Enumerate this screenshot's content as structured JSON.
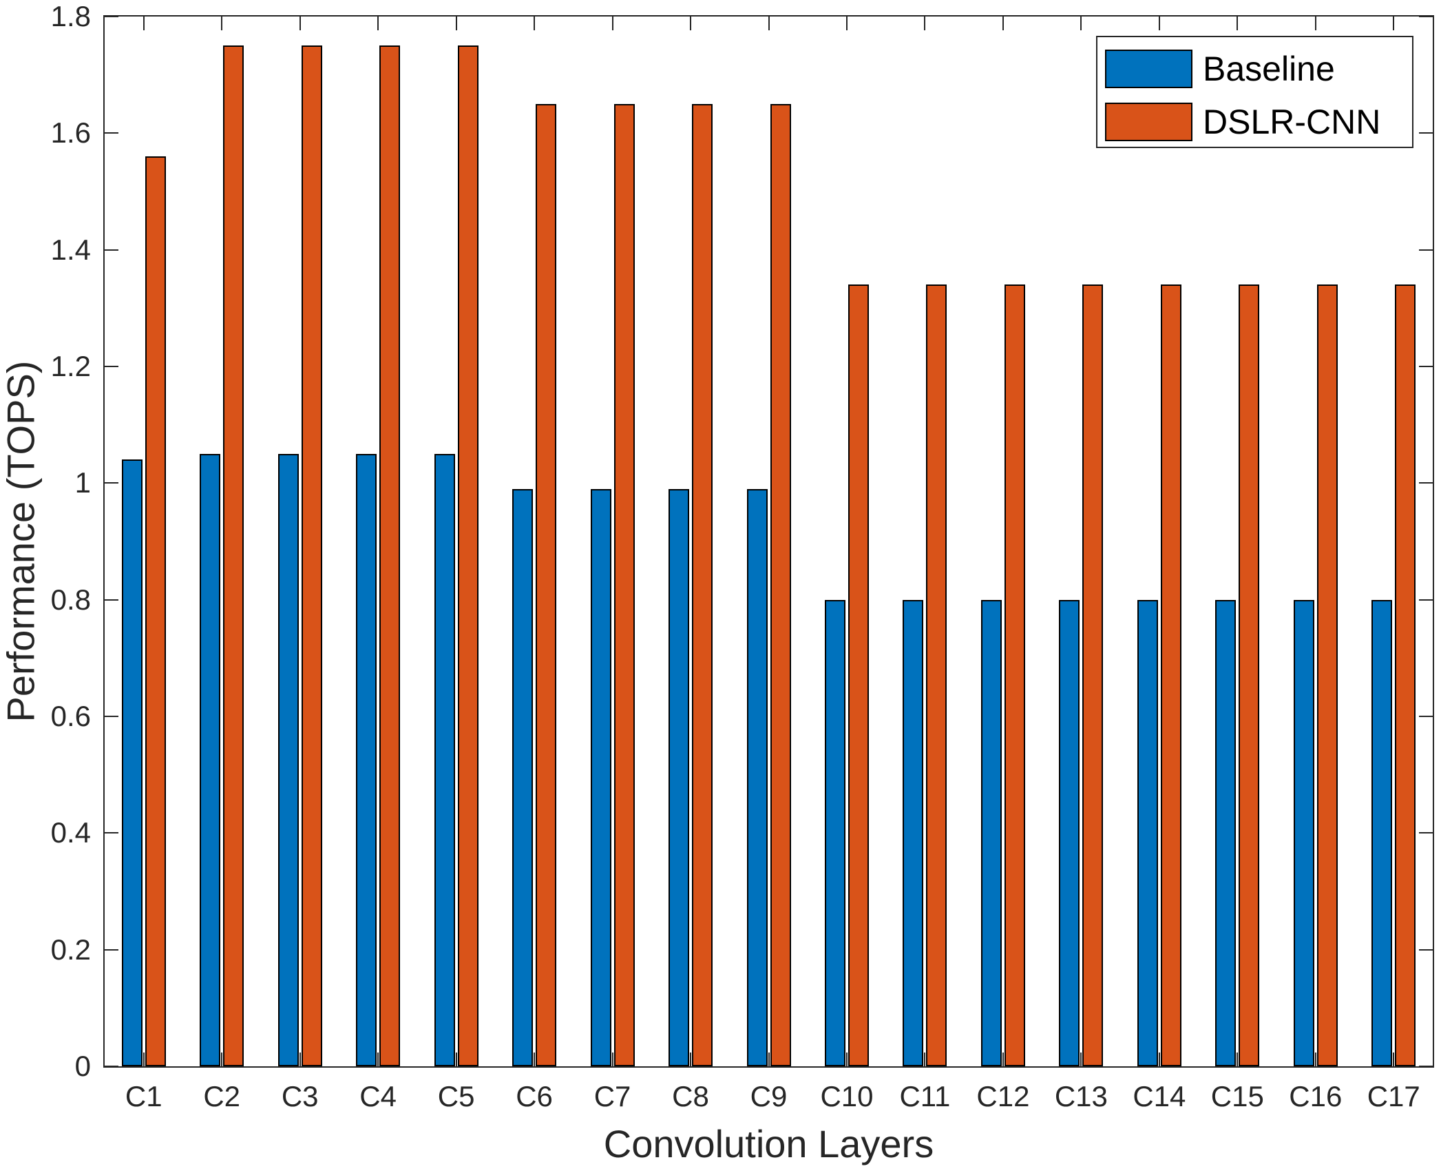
{
  "chart_data": {
    "type": "bar",
    "title": "",
    "xlabel": "Convolution Layers",
    "ylabel": "Performance (TOPS)",
    "categories": [
      "C1",
      "C2",
      "C3",
      "C4",
      "C5",
      "C6",
      "C7",
      "C8",
      "C9",
      "C10",
      "C11",
      "C12",
      "C13",
      "C14",
      "C15",
      "C16",
      "C17"
    ],
    "series": [
      {
        "name": "Baseline",
        "color": "#0072BD",
        "values": [
          1.04,
          1.05,
          1.05,
          1.05,
          1.05,
          0.99,
          0.99,
          0.99,
          0.99,
          0.8,
          0.8,
          0.8,
          0.8,
          0.8,
          0.8,
          0.8,
          0.8
        ]
      },
      {
        "name": "DSLR-CNN",
        "color": "#D95319",
        "values": [
          1.56,
          1.75,
          1.75,
          1.75,
          1.75,
          1.65,
          1.65,
          1.65,
          1.65,
          1.34,
          1.34,
          1.34,
          1.34,
          1.34,
          1.34,
          1.34,
          1.34
        ]
      }
    ],
    "ylim": [
      0,
      1.8
    ],
    "yticks": [
      0,
      0.2,
      0.4,
      0.6,
      0.8,
      1,
      1.2,
      1.4,
      1.6,
      1.8
    ],
    "ytick_labels": [
      "0",
      "0.2",
      "0.4",
      "0.6",
      "0.8",
      "1",
      "1.2",
      "1.4",
      "1.6",
      "1.8"
    ],
    "grid": false,
    "legend_position": "top-right",
    "axis_color": "#262626",
    "bar_edge_color": "#000000",
    "background_color": "#ffffff"
  }
}
